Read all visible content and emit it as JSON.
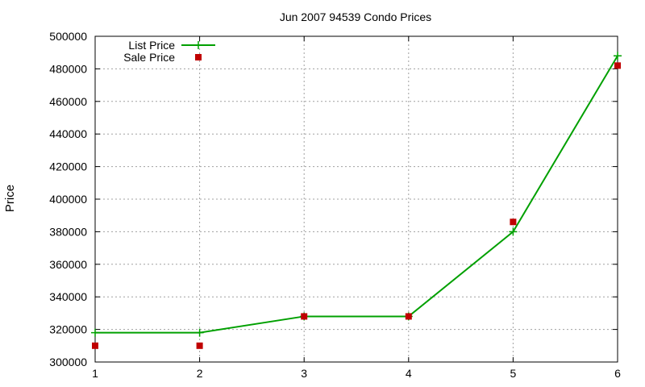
{
  "chart_data": {
    "type": "line",
    "title": "Jun 2007 94539 Condo Prices",
    "xlabel": "",
    "ylabel": "Price",
    "x": [
      1,
      2,
      3,
      4,
      5,
      6
    ],
    "xlim": [
      1,
      6
    ],
    "ylim": [
      300000,
      500000
    ],
    "x_ticks": [
      "1",
      "2",
      "3",
      "4",
      "5",
      "6"
    ],
    "y_ticks": [
      "300000",
      "320000",
      "340000",
      "360000",
      "380000",
      "400000",
      "420000",
      "440000",
      "460000",
      "480000",
      "500000"
    ],
    "grid": true,
    "legend_position": "top-left",
    "series": [
      {
        "name": "List Price",
        "style": "line-with-plus-markers",
        "color": "#00a000",
        "values": [
          318000,
          318000,
          328000,
          328000,
          380000,
          488000
        ]
      },
      {
        "name": "Sale Price",
        "style": "square-markers",
        "color": "#c00000",
        "values": [
          310000,
          310000,
          328000,
          328000,
          386000,
          482000
        ]
      }
    ]
  }
}
